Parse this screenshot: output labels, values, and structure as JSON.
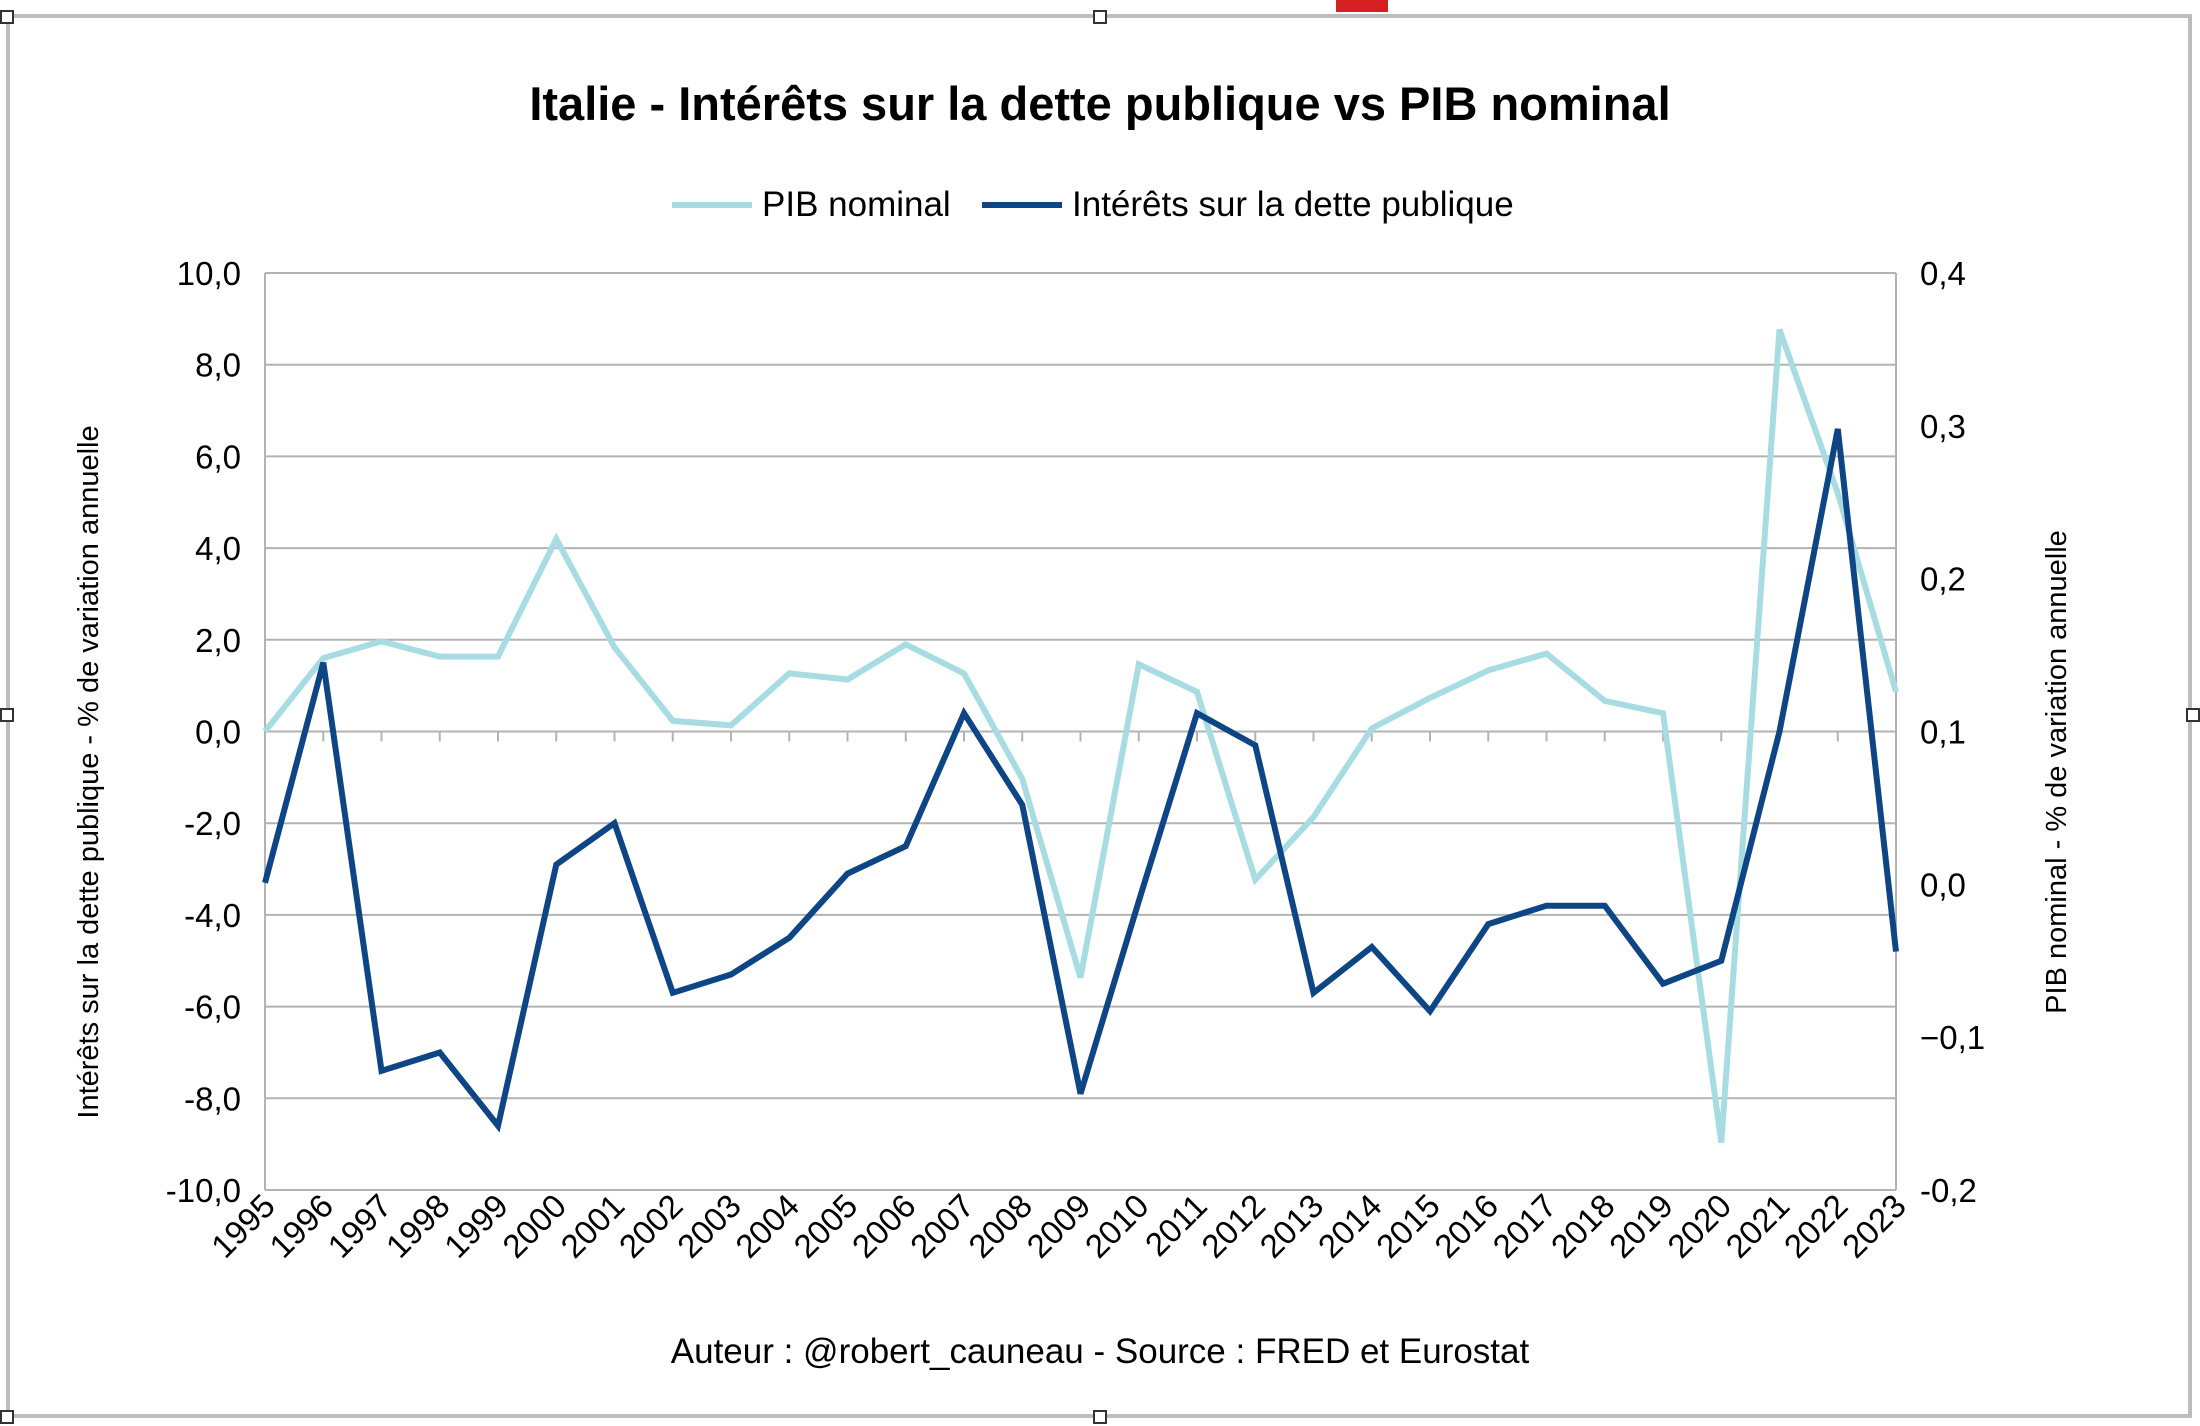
{
  "chart_data": {
    "type": "line",
    "title": "Italie - Intérêts sur la dette publique vs PIB nominal",
    "footer": "Auteur : @robert_cauneau - Source : FRED et Eurostat",
    "x": [
      "1995",
      "1996",
      "1997",
      "1998",
      "1999",
      "2000",
      "2001",
      "2002",
      "2003",
      "2004",
      "2005",
      "2006",
      "2007",
      "2008",
      "2009",
      "2010",
      "2011",
      "2012",
      "2013",
      "2014",
      "2015",
      "2016",
      "2017",
      "2018",
      "2019",
      "2020",
      "2021",
      "2022",
      "2023"
    ],
    "legend_position": "top",
    "grid": true,
    "left_axis": {
      "label": "Intérêts sur la dette publique - % de variation annuelle",
      "range": [
        -10,
        10
      ],
      "ticks": [
        "10,0",
        "8,0",
        "6,0",
        "4,0",
        "2,0",
        "0,0",
        "-2,0",
        "-4,0",
        "-6,0",
        "-8,0",
        "-10,0"
      ]
    },
    "right_axis": {
      "label": "PIB nominal - % de variation annuelle",
      "range": [
        -0.2,
        0.4
      ],
      "ticks": [
        "0,4",
        "0,3",
        "0,2",
        "0,1",
        "0,0",
        "−0,1",
        "-0,2"
      ]
    },
    "series": [
      {
        "name": "PIB nominal",
        "axis": "right",
        "color": "#a8dce3",
        "values": [
          0.1,
          0.148,
          0.159,
          0.149,
          0.149,
          0.226,
          0.155,
          0.107,
          0.104,
          0.138,
          0.134,
          0.157,
          0.138,
          0.069,
          -0.061,
          0.144,
          0.126,
          0.003,
          0.044,
          0.102,
          0.122,
          0.14,
          0.151,
          0.12,
          0.112,
          -0.169,
          0.363,
          0.256,
          0.126
        ]
      },
      {
        "name": "Intérêts sur la dette publique",
        "axis": "left",
        "color": "#0d4585",
        "values": [
          -3.3,
          1.5,
          -7.4,
          -7.0,
          -8.6,
          -2.9,
          -2.0,
          -5.7,
          -5.3,
          -4.5,
          -3.1,
          -2.5,
          0.4,
          -1.6,
          -7.9,
          -3.7,
          0.4,
          -0.3,
          -5.7,
          -4.7,
          -6.1,
          -4.2,
          -3.8,
          -3.8,
          -5.5,
          -5.0,
          0.0,
          6.6,
          -4.8
        ]
      }
    ]
  }
}
